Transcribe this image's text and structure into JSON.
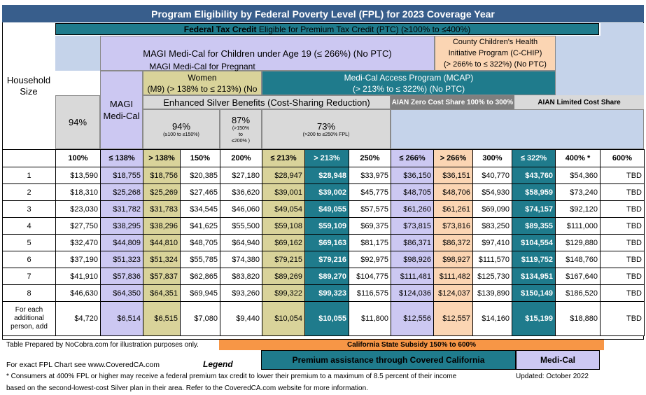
{
  "title": "Program Eligibility by Federal Poverty Level (FPL) for  2023 Coverage Year",
  "ptc": {
    "bold": "Federal Tax Credit",
    "rest": " Eligible for Premium Tax Credit (PTC) (≥100% to ≤400%)"
  },
  "children": "MAGI Medi-Cal for Children under Age 19 (≤ 266%) (No PTC)",
  "chip": [
    "County Children's Health",
    "Initiative Program (C-CHIP)",
    "(> 266% to ≤ 322%) (No PTC)"
  ],
  "household": [
    "Household",
    "Size"
  ],
  "mcal": [
    "MAGI",
    "Medi-Cal"
  ],
  "pregnant": [
    "MAGI Medi-Cal for Pregnant Women",
    "(M9) (> 138% to ≤ 213%) (No PTC)"
  ],
  "mcap": [
    "Medi-Cal Access Program (MCAP)",
    "(> 213% to ≤ 322%) (No PTC)"
  ],
  "esb": "Enhanced Silver Benefits (Cost-Sharing Reduction)",
  "aian_zero": "AIAN Zero Cost Share 100% to 300%",
  "aian_limited": "AIAN Limited Cost Share",
  "csr": {
    "left": "94%",
    "a_pct": "94%",
    "a_range": "(≥100 to ≤150%)",
    "b_pct": "87%",
    "b_range": [
      "(>150%",
      "to",
      "≤200% )"
    ],
    "c_pct": "73%",
    "c_range": "(>200 to ≤250% FPL)"
  },
  "headers": [
    "100%",
    "≤ 138%",
    "> 138%",
    "150%",
    "200%",
    "≤ 213%",
    "> 213%",
    "250%",
    "≤ 266%",
    "> 266%",
    "300%",
    "≤ 322%",
    "400% *",
    "600%"
  ],
  "rows": [
    {
      "size": "1",
      "vals": [
        "$13,590",
        "$18,755",
        "$18,756",
        "$20,385",
        "$27,180",
        "$28,947",
        "$28,948",
        "$33,975",
        "$36,150",
        "$36,151",
        "$40,770",
        "$43,760",
        "$54,360",
        "TBD"
      ]
    },
    {
      "size": "2",
      "vals": [
        "$18,310",
        "$25,268",
        "$25,269",
        "$27,465",
        "$36,620",
        "$39,001",
        "$39,002",
        "$45,775",
        "$48,705",
        "$48,706",
        "$54,930",
        "$58,959",
        "$73,240",
        "TBD"
      ]
    },
    {
      "size": "3",
      "vals": [
        "$23,030",
        "$31,782",
        "$31,783",
        "$34,545",
        "$46,060",
        "$49,054",
        "$49,055",
        "$57,575",
        "$61,260",
        "$61,261",
        "$69,090",
        "$74,157",
        "$92,120",
        "TBD"
      ]
    },
    {
      "size": "4",
      "vals": [
        "$27,750",
        "$38,295",
        "$38,296",
        "$41,625",
        "$55,500",
        "$59,108",
        "$59,109",
        "$69,375",
        "$73,815",
        "$73,816",
        "$83,250",
        "$89,355",
        "$111,000",
        "TBD"
      ]
    },
    {
      "size": "5",
      "vals": [
        "$32,470",
        "$44,809",
        "$44,810",
        "$48,705",
        "$64,940",
        "$69,162",
        "$69,163",
        "$81,175",
        "$86,371",
        "$86,372",
        "$97,410",
        "$104,554",
        "$129,880",
        "TBD"
      ]
    },
    {
      "size": "6",
      "vals": [
        "$37,190",
        "$51,323",
        "$51,324",
        "$55,785",
        "$74,380",
        "$79,215",
        "$79,216",
        "$92,975",
        "$98,926",
        "$98,927",
        "$111,570",
        "$119,752",
        "$148,760",
        "TBD"
      ]
    },
    {
      "size": "7",
      "vals": [
        "$41,910",
        "$57,836",
        "$57,837",
        "$62,865",
        "$83,820",
        "$89,269",
        "$89,270",
        "$104,775",
        "$111,481",
        "$111,482",
        "$125,730",
        "$134,951",
        "$167,640",
        "TBD"
      ]
    },
    {
      "size": "8",
      "vals": [
        "$46,630",
        "$64,350",
        "$64,351",
        "$69,945",
        "$93,260",
        "$99,322",
        "$99,323",
        "$116,575",
        "$124,036",
        "$124,037",
        "$139,890",
        "$150,149",
        "$186,520",
        "TBD"
      ]
    }
  ],
  "additional": {
    "label": [
      "For each",
      "additional",
      "person, add"
    ],
    "vals": [
      "$4,720",
      "$6,514",
      "$6,515",
      "$7,080",
      "$9,440",
      "$10,054",
      "$10,055",
      "$11,800",
      "$12,556",
      "$12,557",
      "$14,160",
      "$15,199",
      "$18,880",
      "TBD"
    ]
  },
  "footer": {
    "prepared": "Table Prepared by NoCobra.com for illustration purposes only.",
    "state_subsidy": "California State Subsidy 150% to 600%",
    "for_exact": "For exact FPL Chart see www.CoveredCA.com",
    "legend": "Legend",
    "premium": "Premium assistance through Covered California",
    "medical": "Medi-Cal",
    "footnote1": "* Consumers at 400% FPL or higher may receive a federal premium tax credit to lower their premium to a maximum of 8.5 percent of their income",
    "updated": "Updated: October 2022",
    "footnote2": "based on the second-lowest-cost Silver plan in their area. Refer to the CoveredCA.com website for more information."
  },
  "colors": {
    "title_bg": "#385e8c",
    "teal": "#1f7b8c",
    "lavender": "#ccc8f2",
    "olive": "#d9d39a",
    "peach": "#fbd5b3",
    "light_blue": "#c5d3ea",
    "orange": "#f79646",
    "gray": "#d9d9d9"
  }
}
